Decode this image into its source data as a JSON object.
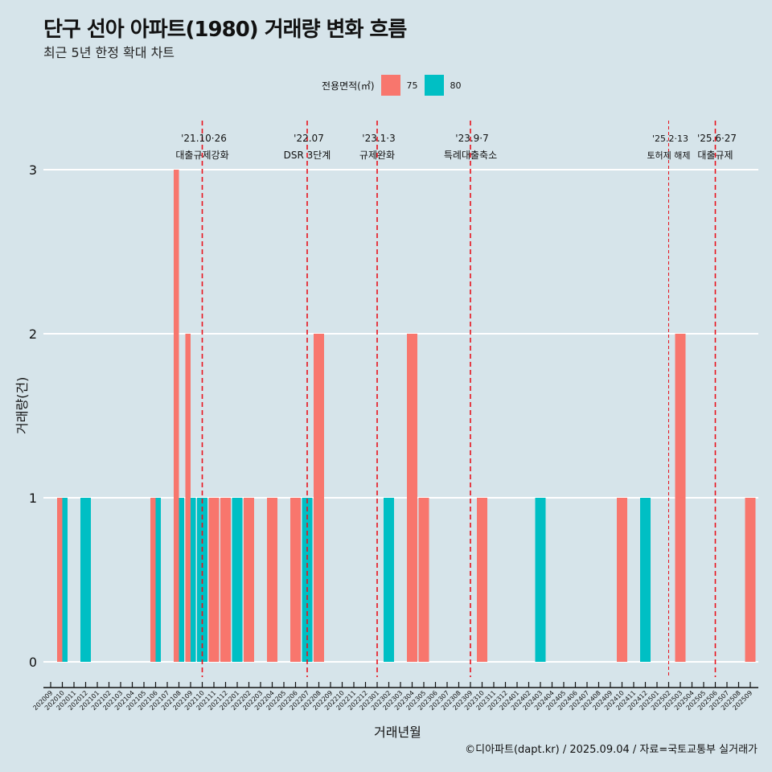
{
  "header": {
    "title": "단구 선아 아파트(1980) 거래량 변화 흐름",
    "subtitle": "최근 5년 한정 확대 차트"
  },
  "legend": {
    "title": "전용면적(㎡)",
    "items": [
      {
        "label": "75",
        "color": "#f8766d"
      },
      {
        "label": "80",
        "color": "#00bfc4"
      }
    ]
  },
  "footer": "©디아파트(dapt.kr) / 2025.09.04 / 자료=국토교통부 실거래가",
  "chart_data": {
    "type": "bar",
    "title": "단구 선아 아파트(1980) 거래량 변화 흐름",
    "subtitle": "최근 5년 한정 확대 차트",
    "xlabel": "거래년월",
    "ylabel": "거래량(건)",
    "ylim": [
      0,
      3
    ],
    "yticks": [
      0,
      1,
      2,
      3
    ],
    "grid": true,
    "legend_position": "top",
    "categories": [
      "202009",
      "202010",
      "202011",
      "202012",
      "202101",
      "202102",
      "202103",
      "202104",
      "202105",
      "202106",
      "202107",
      "202108",
      "202109",
      "202110",
      "202111",
      "202112",
      "202201",
      "202202",
      "202203",
      "202204",
      "202205",
      "202206",
      "202207",
      "202208",
      "202209",
      "202210",
      "202211",
      "202212",
      "202301",
      "202302",
      "202303",
      "202304",
      "202305",
      "202306",
      "202307",
      "202308",
      "202309",
      "202310",
      "202311",
      "202312",
      "202401",
      "202402",
      "202403",
      "202404",
      "202405",
      "202406",
      "202407",
      "202408",
      "202409",
      "202410",
      "202411",
      "202412",
      "202501",
      "202502",
      "202503",
      "202504",
      "202505",
      "202506",
      "202507",
      "202508",
      "202509"
    ],
    "series": [
      {
        "name": "75",
        "color": "#f8766d",
        "points": [
          {
            "x": "202010",
            "y": 1
          },
          {
            "x": "202106",
            "y": 1
          },
          {
            "x": "202108",
            "y": 3
          },
          {
            "x": "202109",
            "y": 2
          },
          {
            "x": "202111",
            "y": 1
          },
          {
            "x": "202112",
            "y": 1
          },
          {
            "x": "202202",
            "y": 1
          },
          {
            "x": "202204",
            "y": 1
          },
          {
            "x": "202206",
            "y": 1
          },
          {
            "x": "202208",
            "y": 2
          },
          {
            "x": "202304",
            "y": 2
          },
          {
            "x": "202305",
            "y": 1
          },
          {
            "x": "202310",
            "y": 1
          },
          {
            "x": "202410",
            "y": 1
          },
          {
            "x": "202503",
            "y": 2
          },
          {
            "x": "202509",
            "y": 1
          }
        ]
      },
      {
        "name": "80",
        "color": "#00bfc4",
        "points": [
          {
            "x": "202010",
            "y": 1
          },
          {
            "x": "202012",
            "y": 1
          },
          {
            "x": "202106",
            "y": 1
          },
          {
            "x": "202108",
            "y": 1
          },
          {
            "x": "202109",
            "y": 1
          },
          {
            "x": "202110",
            "y": 1
          },
          {
            "x": "202201",
            "y": 1
          },
          {
            "x": "202207",
            "y": 1
          },
          {
            "x": "202302",
            "y": 1
          },
          {
            "x": "202403",
            "y": 1
          },
          {
            "x": "202412",
            "y": 1
          }
        ]
      }
    ],
    "annotations": [
      {
        "x": "202110",
        "line1": "'21.10·26",
        "line2": "대출규제강화",
        "style": "dashed"
      },
      {
        "x": "202207",
        "line1": "'22.07",
        "line2": "DSR 3단계",
        "style": "dashed"
      },
      {
        "x": "202301",
        "line1": "'23.1·3",
        "line2": "규제완화",
        "style": "dashed"
      },
      {
        "x": "202309",
        "line1": "'23.9·7",
        "line2": "특례대출축소",
        "style": "dashed"
      },
      {
        "x": "202502",
        "line1": "'25.2·13",
        "line2": "토허제 해제",
        "style": "dotted"
      },
      {
        "x": "202506",
        "line1": "'25.6·27",
        "line2": "대출규제",
        "style": "dashed"
      }
    ]
  }
}
